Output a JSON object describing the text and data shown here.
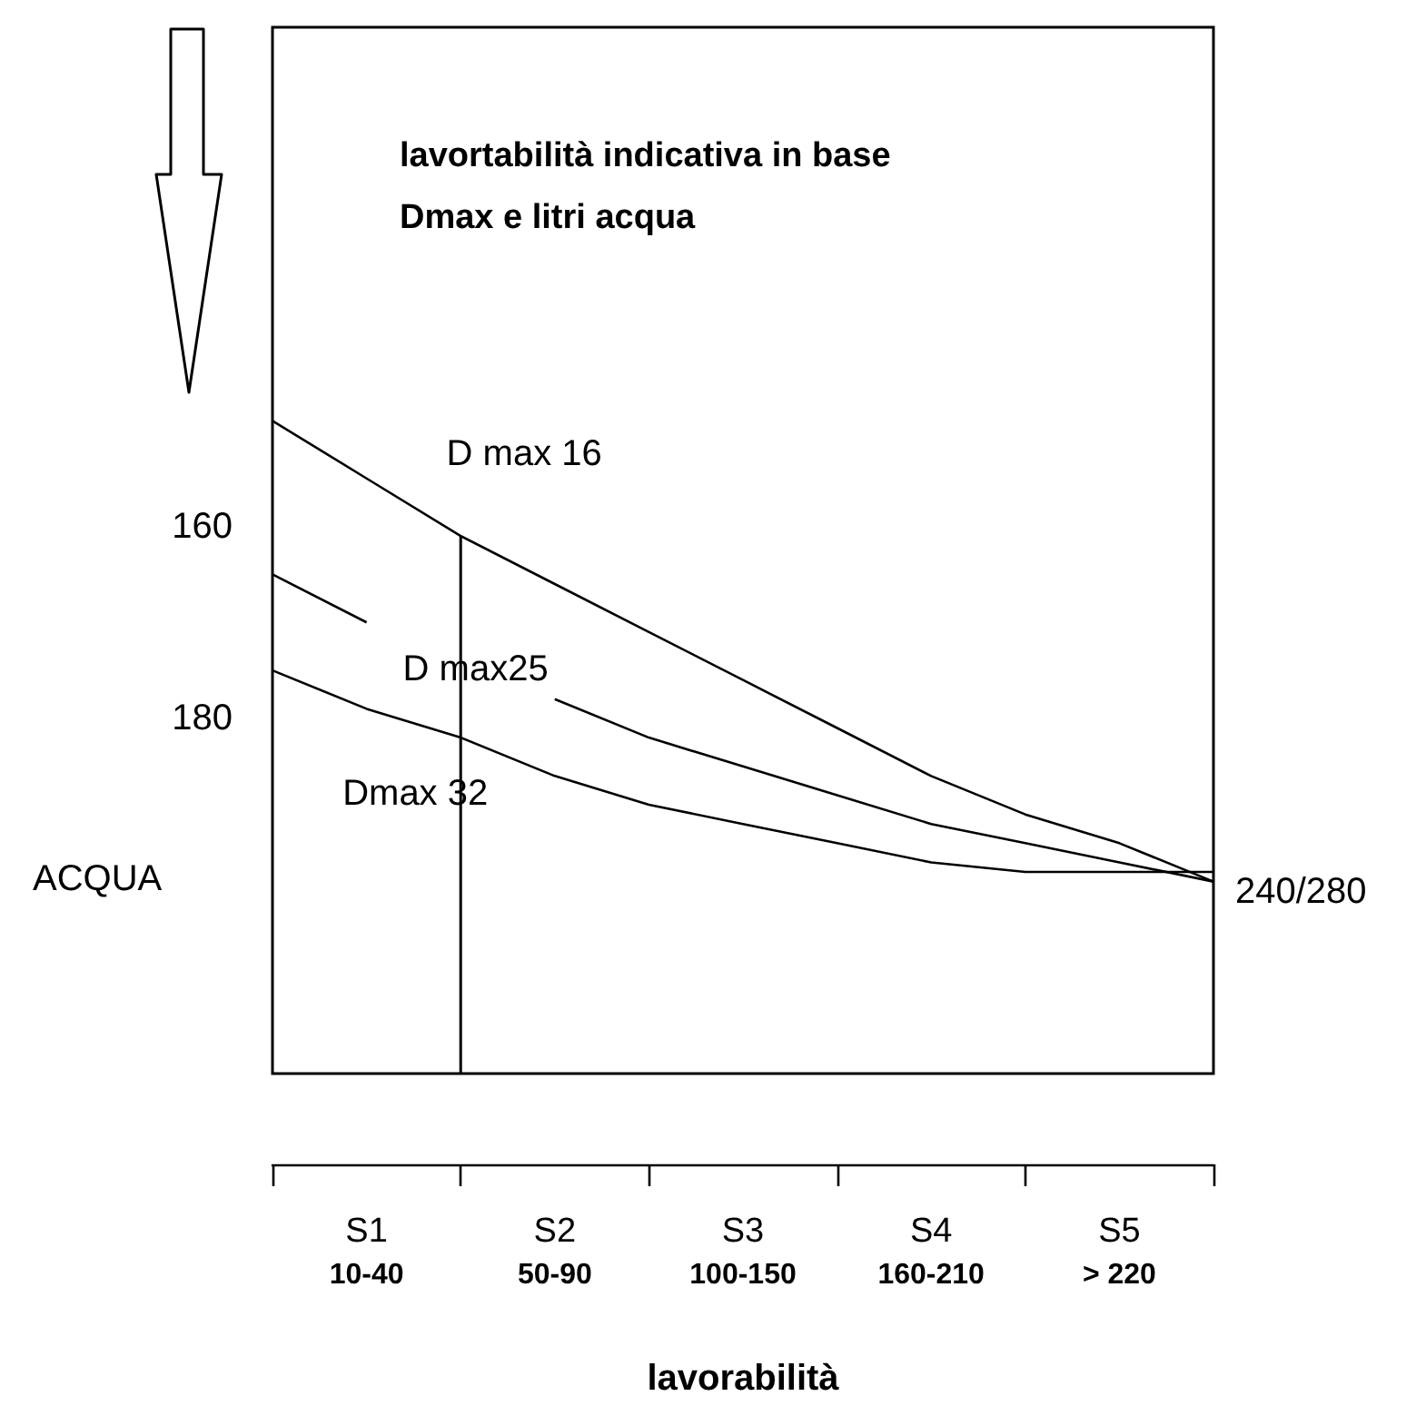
{
  "chart_data": {
    "type": "line",
    "title": "lavortabilità indicativa in base Dmax e litri acqua",
    "xlabel": "lavorabilità",
    "ylabel": "ACQUA",
    "annotations": [
      "240/280"
    ],
    "categories": [
      null,
      "S1\n10-40",
      null,
      "S2\n50-90",
      null,
      "S3\n100-150",
      null,
      "S4\n160-210",
      null,
      "S5\n> 220",
      null
    ],
    "ylim": [
      217,
      108
    ],
    "yticks": [
      160,
      180
    ],
    "marker": "none",
    "series": [
      {
        "name": "D max 16",
        "color": "#000000",
        "values": [
          149,
          155,
          161,
          166,
          171,
          176,
          181,
          186,
          190,
          193,
          197
        ]
      },
      {
        "name": "D max25",
        "color": "#000000",
        "values": [
          165,
          170,
          null,
          178,
          182,
          185,
          188,
          191,
          193,
          195,
          197
        ]
      },
      {
        "name": "Dmax 32",
        "color": "#000000",
        "values": [
          175,
          179,
          182,
          186,
          189,
          191,
          193,
          195,
          196,
          196,
          196
        ]
      },
      {
        "type": "bar",
        "color": "#000000",
        "values": [
          null,
          null,
          56,
          null,
          null,
          null,
          null,
          null,
          null,
          null,
          null
        ],
        "base": [
          null,
          null,
          161,
          null,
          null,
          null,
          null,
          null,
          null,
          null,
          null
        ]
      }
    ]
  }
}
